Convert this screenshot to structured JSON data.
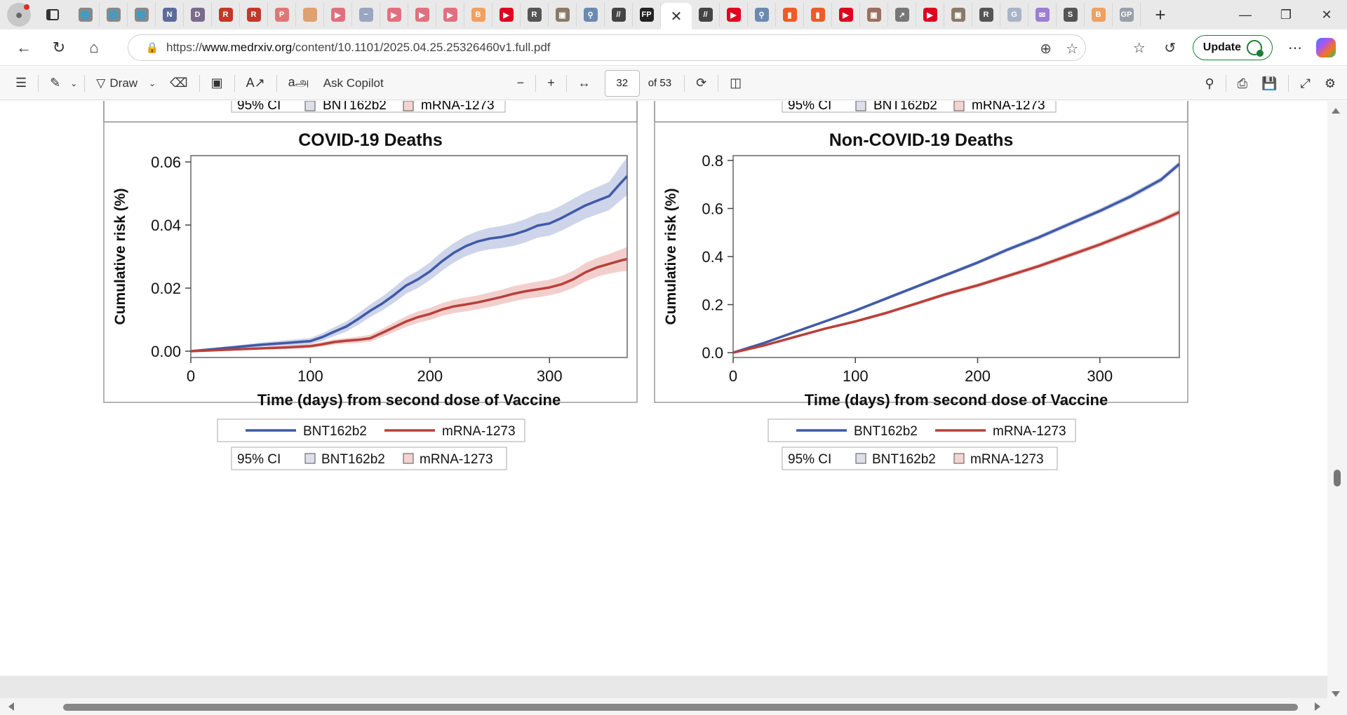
{
  "browser": {
    "tab_favicons": [
      {
        "icon": "globe-icon",
        "color": "#888888"
      },
      {
        "icon": "globe-icon",
        "color": "#888888"
      },
      {
        "icon": "globe-icon",
        "color": "#888888"
      },
      {
        "icon": "news-icon",
        "color": "#5b6c9a"
      },
      {
        "icon": "doc-icon",
        "color": "#7a6b8a"
      },
      {
        "icon": "r-icon",
        "color": "#c0392b"
      },
      {
        "icon": "r-icon",
        "color": "#c0392b"
      },
      {
        "icon": "pdf-icon",
        "color": "#d77"
      },
      {
        "icon": "circle-icon",
        "color": "#e0a070"
      },
      {
        "icon": "youtube-icon",
        "color": "#e07080"
      },
      {
        "icon": "pulse-icon",
        "color": "#9aa6c0"
      },
      {
        "icon": "youtube-icon",
        "color": "#e07080"
      },
      {
        "icon": "youtube-icon",
        "color": "#e07080"
      },
      {
        "icon": "youtube-icon",
        "color": "#e07080"
      },
      {
        "icon": "b-icon",
        "color": "#f0a060"
      },
      {
        "icon": "youtube-icon",
        "color": "#e00020"
      },
      {
        "icon": "r-icon",
        "color": "#555555"
      },
      {
        "icon": "photo-icon",
        "color": "#8a7a6a"
      },
      {
        "icon": "search-icon",
        "color": "#6a8ab0"
      },
      {
        "icon": "slash-icon",
        "color": "#444444"
      },
      {
        "icon": "fp-icon",
        "color": "#222222"
      },
      {
        "icon": "slash-icon",
        "color": "#444444"
      },
      {
        "icon": "youtube-icon",
        "color": "#e00020"
      },
      {
        "icon": "search-icon",
        "color": "#6a8ab0"
      },
      {
        "icon": "bookmark-icon",
        "color": "#f05a28"
      },
      {
        "icon": "bookmark-icon",
        "color": "#f05a28"
      },
      {
        "icon": "youtube-icon",
        "color": "#e00020"
      },
      {
        "icon": "photo-icon",
        "color": "#9a7060"
      },
      {
        "icon": "chart-icon",
        "color": "#777777"
      },
      {
        "icon": "youtube-icon",
        "color": "#e00020"
      },
      {
        "icon": "photo-icon",
        "color": "#8a7a6a"
      },
      {
        "icon": "r-icon",
        "color": "#555555"
      },
      {
        "icon": "g-icon",
        "color": "#aab4c8"
      },
      {
        "icon": "mail-icon",
        "color": "#9b7fd0"
      },
      {
        "icon": "s-icon",
        "color": "#555555"
      },
      {
        "icon": "b-icon",
        "color": "#f0a060"
      },
      {
        "icon": "gp-icon",
        "color": "#9aa0aa"
      }
    ],
    "url_scheme": "https://",
    "url_host": "www.medrxiv.org",
    "url_path": "/content/10.1101/2025.04.25.25326460v1.full.pdf",
    "update_label": "Update"
  },
  "pdf_toolbar": {
    "draw_label": "Draw",
    "ask_copilot_label": "Ask Copilot",
    "page_number": "32",
    "page_total": "of 53"
  },
  "colors": {
    "bnt": "#3f5aa6",
    "bnt_band": "#c6cde6",
    "mrna": "#b8403a",
    "mrna_band": "#f0c7c4"
  },
  "top_legend_cut": {
    "ci": "95% CI",
    "bnt": "BNT162b2",
    "mrna": "mRNA-1273"
  },
  "chart_data": [
    {
      "type": "line",
      "title": "COVID-19 Deaths",
      "xlabel": "Time (days) from second dose of Vaccine",
      "ylabel": "Cumulative risk (%)",
      "xlim": [
        0,
        365
      ],
      "ylim": [
        -0.002,
        0.062
      ],
      "xticks": [
        0,
        100,
        200,
        300
      ],
      "yticks": [
        0.0,
        0.02,
        0.04,
        0.06
      ],
      "ytick_labels": [
        "0.00",
        "0.02",
        "0.04",
        "0.06"
      ],
      "legend": {
        "line_items": [
          "BNT162b2",
          "mRNA-1273"
        ],
        "ci_label": "95% CI",
        "ci_items": [
          "BNT162b2",
          "mRNA-1273"
        ],
        "position": "bottom"
      },
      "series": [
        {
          "name": "BNT162b2",
          "x": [
            0,
            20,
            40,
            60,
            80,
            100,
            110,
            120,
            130,
            140,
            150,
            160,
            170,
            180,
            190,
            200,
            210,
            220,
            230,
            240,
            250,
            260,
            270,
            280,
            290,
            300,
            310,
            320,
            330,
            340,
            350,
            360,
            365
          ],
          "y": [
            0.0,
            0.0007,
            0.0014,
            0.0021,
            0.0026,
            0.0032,
            0.0045,
            0.0062,
            0.0078,
            0.0102,
            0.0128,
            0.0151,
            0.0178,
            0.0208,
            0.0228,
            0.0253,
            0.0285,
            0.0312,
            0.0333,
            0.0348,
            0.0357,
            0.0362,
            0.037,
            0.0382,
            0.0398,
            0.0405,
            0.0422,
            0.0442,
            0.0462,
            0.0477,
            0.0492,
            0.0535,
            0.0555
          ],
          "ci_halfwidth": [
            0.0,
            0.0003,
            0.0005,
            0.0007,
            0.0009,
            0.001,
            0.0012,
            0.0014,
            0.0016,
            0.0018,
            0.002,
            0.0022,
            0.0024,
            0.0026,
            0.0027,
            0.0028,
            0.003,
            0.0031,
            0.0032,
            0.0033,
            0.0034,
            0.0035,
            0.0036,
            0.0037,
            0.0038,
            0.0039,
            0.004,
            0.0041,
            0.0042,
            0.0043,
            0.0045,
            0.0055,
            0.006
          ]
        },
        {
          "name": "mRNA-1273",
          "x": [
            0,
            20,
            40,
            60,
            80,
            100,
            110,
            120,
            130,
            140,
            150,
            160,
            170,
            180,
            190,
            200,
            210,
            220,
            230,
            240,
            250,
            260,
            270,
            280,
            290,
            300,
            310,
            320,
            330,
            340,
            350,
            360,
            365
          ],
          "y": [
            0.0,
            0.0003,
            0.0006,
            0.0009,
            0.0012,
            0.0016,
            0.0022,
            0.0029,
            0.0033,
            0.0036,
            0.0041,
            0.0058,
            0.0076,
            0.0094,
            0.0108,
            0.0118,
            0.0132,
            0.0142,
            0.0148,
            0.0155,
            0.0163,
            0.0172,
            0.0182,
            0.019,
            0.0196,
            0.0202,
            0.0212,
            0.0228,
            0.025,
            0.0266,
            0.0277,
            0.0288,
            0.0292
          ],
          "ci_halfwidth": [
            0.0,
            0.0002,
            0.0003,
            0.0004,
            0.0005,
            0.0006,
            0.0007,
            0.0008,
            0.0009,
            0.001,
            0.0011,
            0.0013,
            0.0015,
            0.0017,
            0.0018,
            0.0019,
            0.002,
            0.0021,
            0.0022,
            0.0022,
            0.0023,
            0.0023,
            0.0024,
            0.0024,
            0.0025,
            0.0025,
            0.0026,
            0.0027,
            0.0029,
            0.003,
            0.0031,
            0.0035,
            0.0038
          ]
        }
      ]
    },
    {
      "type": "line",
      "title": "Non-COVID-19 Deaths",
      "xlabel": "Time (days) from second dose of Vaccine",
      "ylabel": "Cumulative risk (%)",
      "xlim": [
        0,
        365
      ],
      "ylim": [
        -0.02,
        0.82
      ],
      "xticks": [
        0,
        100,
        200,
        300
      ],
      "yticks": [
        0.0,
        0.2,
        0.4,
        0.6,
        0.8
      ],
      "ytick_labels": [
        "0.0",
        "0.2",
        "0.4",
        "0.6",
        "0.8"
      ],
      "legend": {
        "line_items": [
          "BNT162b2",
          "mRNA-1273"
        ],
        "ci_label": "95% CI",
        "ci_items": [
          "BNT162b2",
          "mRNA-1273"
        ],
        "position": "bottom"
      },
      "series": [
        {
          "name": "BNT162b2",
          "x": [
            0,
            25,
            50,
            75,
            100,
            125,
            150,
            175,
            200,
            225,
            250,
            275,
            300,
            325,
            350,
            365
          ],
          "y": [
            0.0,
            0.04,
            0.085,
            0.13,
            0.175,
            0.225,
            0.275,
            0.325,
            0.375,
            0.43,
            0.48,
            0.535,
            0.59,
            0.65,
            0.72,
            0.785
          ],
          "ci_halfwidth": [
            0.0,
            0.003,
            0.004,
            0.005,
            0.006,
            0.007,
            0.007,
            0.008,
            0.008,
            0.009,
            0.009,
            0.01,
            0.01,
            0.011,
            0.011,
            0.012
          ]
        },
        {
          "name": "mRNA-1273",
          "x": [
            0,
            25,
            50,
            75,
            100,
            125,
            150,
            175,
            200,
            225,
            250,
            275,
            300,
            325,
            350,
            365
          ],
          "y": [
            0.0,
            0.03,
            0.065,
            0.1,
            0.13,
            0.165,
            0.205,
            0.245,
            0.28,
            0.32,
            0.36,
            0.405,
            0.45,
            0.5,
            0.55,
            0.585
          ],
          "ci_halfwidth": [
            0.0,
            0.003,
            0.004,
            0.005,
            0.006,
            0.007,
            0.007,
            0.008,
            0.008,
            0.009,
            0.009,
            0.01,
            0.01,
            0.011,
            0.011,
            0.012
          ]
        }
      ]
    }
  ]
}
